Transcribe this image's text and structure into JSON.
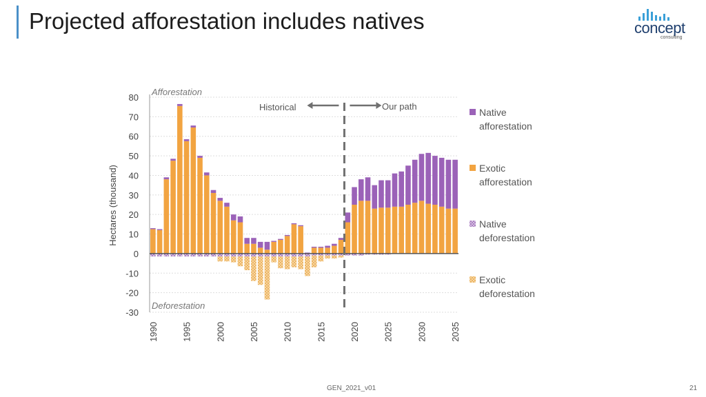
{
  "slide": {
    "title": "Projected afforestation includes natives",
    "footer_code": "GEN_2021_v01",
    "page_number": "21"
  },
  "logo": {
    "word": "concept",
    "sub": "consulting"
  },
  "colors": {
    "accent_bar": "#4a90c8",
    "native": "#9b62b8",
    "exotic": "#f2a441",
    "zero_line": "#555555",
    "grid": "#dddddd",
    "divider": "#707070"
  },
  "chart_data": {
    "type": "bar",
    "stacked": true,
    "ylabel": "Hectares (thousand)",
    "ylim": [
      -30,
      80
    ],
    "yticks": [
      80,
      70,
      60,
      50,
      40,
      30,
      20,
      10,
      0,
      -10,
      -20,
      -30
    ],
    "xticks": [
      1990,
      1995,
      2000,
      2005,
      2010,
      2015,
      2020,
      2025,
      2030,
      2035
    ],
    "annotations": {
      "top": "Afforestation",
      "bottom": "Deforestation",
      "historical": "Historical",
      "our_path": "Our path",
      "divider_year": 2018.5
    },
    "legend_position": "right",
    "years": [
      1990,
      1991,
      1992,
      1993,
      1994,
      1995,
      1996,
      1997,
      1998,
      1999,
      2000,
      2001,
      2002,
      2003,
      2004,
      2005,
      2006,
      2007,
      2008,
      2009,
      2010,
      2011,
      2012,
      2013,
      2014,
      2015,
      2016,
      2017,
      2018,
      2019,
      2020,
      2021,
      2022,
      2023,
      2024,
      2025,
      2026,
      2027,
      2028,
      2029,
      2030,
      2031,
      2032,
      2033,
      2034,
      2035
    ],
    "series": [
      {
        "name": "Native\nafforestation",
        "key": "native_aff",
        "values": [
          0.5,
          0.5,
          1,
          1,
          1,
          1,
          1,
          1,
          1.5,
          1.5,
          1.5,
          2,
          3,
          3,
          3,
          3,
          3,
          4,
          0.5,
          0.5,
          0.5,
          0.5,
          0.5,
          0.5,
          0.5,
          0.5,
          1,
          1,
          1,
          5,
          9,
          11,
          12,
          12,
          14,
          14,
          17,
          18,
          20,
          22,
          24,
          26,
          25,
          25,
          25,
          25
        ]
      },
      {
        "name": "Exotic\nafforestation",
        "key": "exotic_aff",
        "values": [
          12.5,
          12,
          38,
          47.5,
          75.5,
          57.5,
          64.5,
          49,
          40,
          31,
          27,
          24,
          17,
          16,
          5,
          5,
          3,
          2,
          6,
          7,
          9,
          15,
          14,
          0,
          3,
          3,
          3,
          4,
          7,
          16,
          25,
          27,
          27,
          23,
          23.5,
          23.5,
          24,
          24,
          25,
          26,
          27,
          25.5,
          25,
          24,
          23,
          23
        ]
      },
      {
        "name": "Native\ndeforestation",
        "key": "native_def",
        "values": [
          -1.5,
          -1.5,
          -1.5,
          -1.5,
          -1.5,
          -1.5,
          -1.5,
          -1.5,
          -1.5,
          -1.5,
          -1.5,
          -1.5,
          -1.5,
          -1.5,
          -1.5,
          -1.5,
          -1.5,
          -1.5,
          -1.5,
          -1.5,
          -1.5,
          -1.5,
          -1.5,
          -1.5,
          -1,
          -1,
          -1,
          -1,
          -1,
          -1,
          -1,
          -1,
          -0.5,
          -0.5,
          -0.5,
          -0.5,
          0,
          0,
          0,
          0,
          0,
          0,
          0,
          0,
          0,
          0
        ]
      },
      {
        "name": "Exotic\ndeforestation",
        "key": "exotic_def",
        "values": [
          0,
          0,
          0,
          0,
          0,
          0,
          0,
          0,
          0,
          0,
          -2.5,
          -2.5,
          -3,
          -5,
          -7,
          -12.5,
          -14.5,
          -22,
          -3,
          -6,
          -6.5,
          -5.5,
          -6.5,
          -10,
          -6,
          -3,
          -1.5,
          -1.5,
          -1,
          0,
          0,
          0,
          0,
          0,
          0,
          0,
          0,
          0,
          0,
          0,
          0,
          0,
          0,
          0,
          0,
          0
        ]
      }
    ]
  }
}
